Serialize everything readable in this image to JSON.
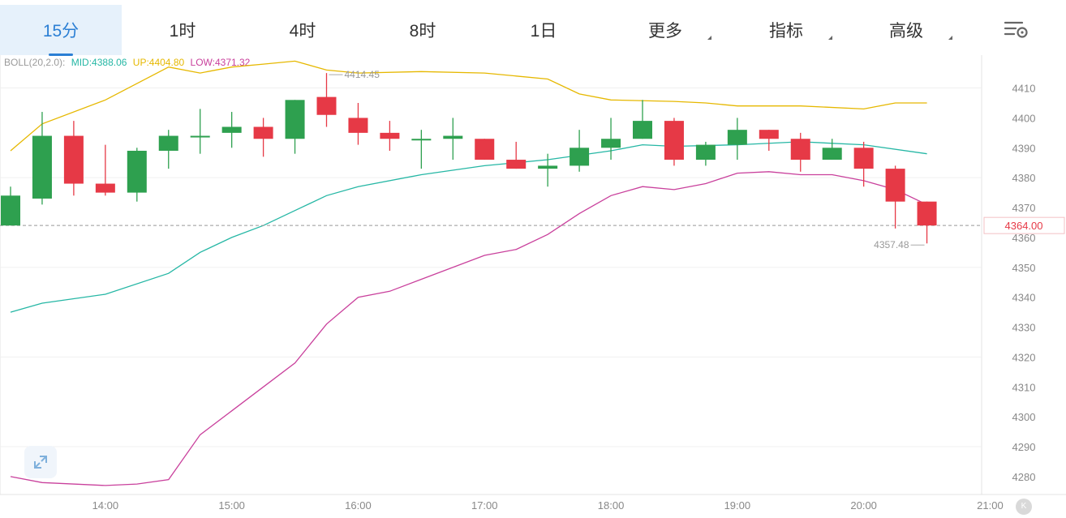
{
  "tabs": [
    {
      "label": "15分",
      "active": true,
      "dropdown": false
    },
    {
      "label": "1时",
      "active": false,
      "dropdown": false
    },
    {
      "label": "4时",
      "active": false,
      "dropdown": false
    },
    {
      "label": "8时",
      "active": false,
      "dropdown": false
    },
    {
      "label": "1日",
      "active": false,
      "dropdown": false
    },
    {
      "label": "更多",
      "active": false,
      "dropdown": true
    },
    {
      "label": "指标",
      "active": false,
      "dropdown": true
    },
    {
      "label": "高级",
      "active": false,
      "dropdown": true
    }
  ],
  "settings_icon": "chart-settings-icon",
  "boll": {
    "name": "BOLL(20,2.0):",
    "mid": "MID:4388.06",
    "up": "UP:4404.80",
    "low": "LOW:4371.32",
    "colors": {
      "name": "#9a9a9a",
      "mid": "#26b7a5",
      "up": "#e6b800",
      "low": "#c9409c"
    }
  },
  "expand_icon": "expand-arrows-icon",
  "k_badge": "K",
  "chart_data": {
    "type": "candlestick",
    "ylim": [
      4274,
      4421
    ],
    "y_ticks": [
      4280,
      4290,
      4300,
      4310,
      4320,
      4330,
      4340,
      4350,
      4360,
      4370,
      4380,
      4390,
      4400,
      4410
    ],
    "x_ticks": [
      "14:00",
      "15:00",
      "16:00",
      "17:00",
      "18:00",
      "19:00",
      "20:00",
      "21:00"
    ],
    "x_range": [
      "13:15",
      "21:00"
    ],
    "grid": true,
    "colors": {
      "up": "#2ea04f",
      "down": "#e63946",
      "mid": "#26b7a5",
      "upper": "#e6b800",
      "lower": "#c9409c",
      "current": "#e63946"
    },
    "candles": [
      {
        "t": "13:15",
        "o": 4364,
        "h": 4377,
        "l": 4364,
        "c": 4374
      },
      {
        "t": "13:30",
        "o": 4373,
        "h": 4402,
        "l": 4371,
        "c": 4394
      },
      {
        "t": "13:45",
        "o": 4394,
        "h": 4399,
        "l": 4374,
        "c": 4378
      },
      {
        "t": "14:00",
        "o": 4378,
        "h": 4391,
        "l": 4374,
        "c": 4375
      },
      {
        "t": "14:15",
        "o": 4375,
        "h": 4390,
        "l": 4372,
        "c": 4389
      },
      {
        "t": "14:30",
        "o": 4389,
        "h": 4396,
        "l": 4383,
        "c": 4394
      },
      {
        "t": "14:45",
        "o": 4394,
        "h": 4403,
        "l": 4388,
        "c": 4394
      },
      {
        "t": "15:00",
        "o": 4395,
        "h": 4402,
        "l": 4390,
        "c": 4397
      },
      {
        "t": "15:15",
        "o": 4397,
        "h": 4400,
        "l": 4387,
        "c": 4393
      },
      {
        "t": "15:30",
        "o": 4393,
        "h": 4406,
        "l": 4388,
        "c": 4406
      },
      {
        "t": "15:45",
        "o": 4407,
        "h": 4415,
        "l": 4397,
        "c": 4401
      },
      {
        "t": "16:00",
        "o": 4400,
        "h": 4405,
        "l": 4391,
        "c": 4395
      },
      {
        "t": "16:15",
        "o": 4395,
        "h": 4399,
        "l": 4389,
        "c": 4393
      },
      {
        "t": "16:30",
        "o": 4393,
        "h": 4396,
        "l": 4383,
        "c": 4393
      },
      {
        "t": "16:45",
        "o": 4393,
        "h": 4400,
        "l": 4386,
        "c": 4394
      },
      {
        "t": "17:00",
        "o": 4393,
        "h": 4393,
        "l": 4386,
        "c": 4386
      },
      {
        "t": "17:15",
        "o": 4386,
        "h": 4392,
        "l": 4383,
        "c": 4383
      },
      {
        "t": "17:30",
        "o": 4383,
        "h": 4388,
        "l": 4377,
        "c": 4384
      },
      {
        "t": "17:45",
        "o": 4384,
        "h": 4396,
        "l": 4382,
        "c": 4390
      },
      {
        "t": "18:00",
        "o": 4390,
        "h": 4400,
        "l": 4386,
        "c": 4393
      },
      {
        "t": "18:15",
        "o": 4393,
        "h": 4406,
        "l": 4393,
        "c": 4399
      },
      {
        "t": "18:30",
        "o": 4399,
        "h": 4400,
        "l": 4384,
        "c": 4386
      },
      {
        "t": "18:45",
        "o": 4386,
        "h": 4392,
        "l": 4384,
        "c": 4391
      },
      {
        "t": "19:00",
        "o": 4391,
        "h": 4400,
        "l": 4386,
        "c": 4396
      },
      {
        "t": "19:15",
        "o": 4396,
        "h": 4396,
        "l": 4389,
        "c": 4393
      },
      {
        "t": "19:30",
        "o": 4393,
        "h": 4395,
        "l": 4382,
        "c": 4386
      },
      {
        "t": "19:45",
        "o": 4386,
        "h": 4393,
        "l": 4386,
        "c": 4390
      },
      {
        "t": "20:00",
        "o": 4390,
        "h": 4392,
        "l": 4377,
        "c": 4383
      },
      {
        "t": "20:15",
        "o": 4383,
        "h": 4384,
        "l": 4363,
        "c": 4372
      },
      {
        "t": "20:30",
        "o": 4372,
        "h": 4372,
        "l": 4358,
        "c": 4364
      }
    ],
    "upper_band": [
      [
        "13:15",
        4389
      ],
      [
        "13:30",
        4398
      ],
      [
        "14:00",
        4406
      ],
      [
        "14:30",
        4417
      ],
      [
        "14:45",
        4415
      ],
      [
        "15:00",
        4417
      ],
      [
        "15:15",
        4418
      ],
      [
        "15:30",
        4419
      ],
      [
        "15:45",
        4416
      ],
      [
        "16:00",
        4415
      ],
      [
        "16:30",
        4415.5
      ],
      [
        "17:00",
        4415
      ],
      [
        "17:15",
        4414
      ],
      [
        "17:30",
        4413
      ],
      [
        "17:45",
        4408
      ],
      [
        "18:00",
        4406
      ],
      [
        "18:30",
        4405.5
      ],
      [
        "18:45",
        4405
      ],
      [
        "19:00",
        4404
      ],
      [
        "19:30",
        4404
      ],
      [
        "20:00",
        4403
      ],
      [
        "20:15",
        4405
      ],
      [
        "20:30",
        4405
      ]
    ],
    "mid_band": [
      [
        "13:15",
        4335
      ],
      [
        "13:30",
        4338
      ],
      [
        "14:00",
        4341
      ],
      [
        "14:30",
        4348
      ],
      [
        "14:45",
        4355
      ],
      [
        "15:00",
        4360
      ],
      [
        "15:15",
        4364
      ],
      [
        "15:30",
        4369
      ],
      [
        "15:45",
        4374
      ],
      [
        "16:00",
        4377
      ],
      [
        "16:30",
        4381
      ],
      [
        "17:00",
        4384
      ],
      [
        "17:30",
        4386
      ],
      [
        "18:00",
        4389
      ],
      [
        "18:15",
        4391
      ],
      [
        "18:30",
        4390.5
      ],
      [
        "19:00",
        4391
      ],
      [
        "19:30",
        4392
      ],
      [
        "20:00",
        4391
      ],
      [
        "20:30",
        4388
      ]
    ],
    "lower_band": [
      [
        "13:15",
        4280
      ],
      [
        "13:30",
        4278
      ],
      [
        "14:00",
        4277
      ],
      [
        "14:15",
        4277.5
      ],
      [
        "14:30",
        4279
      ],
      [
        "14:45",
        4294
      ],
      [
        "15:00",
        4302
      ],
      [
        "15:15",
        4310
      ],
      [
        "15:30",
        4318
      ],
      [
        "15:45",
        4331
      ],
      [
        "16:00",
        4340
      ],
      [
        "16:15",
        4342
      ],
      [
        "16:30",
        4346
      ],
      [
        "17:00",
        4354
      ],
      [
        "17:15",
        4356
      ],
      [
        "17:30",
        4361
      ],
      [
        "17:45",
        4368
      ],
      [
        "18:00",
        4374
      ],
      [
        "18:15",
        4377
      ],
      [
        "18:30",
        4376
      ],
      [
        "18:45",
        4378
      ],
      [
        "19:00",
        4381.5
      ],
      [
        "19:15",
        4382
      ],
      [
        "19:30",
        4381
      ],
      [
        "19:45",
        4381
      ],
      [
        "20:00",
        4379
      ],
      [
        "20:15",
        4376
      ],
      [
        "20:30",
        4371
      ]
    ],
    "annotations": {
      "high": {
        "text": "4414.45",
        "t": "15:45"
      },
      "low": {
        "text": "4357.48",
        "t": "20:30"
      }
    },
    "current_price": {
      "text": "4364.00",
      "value": 4364
    }
  }
}
